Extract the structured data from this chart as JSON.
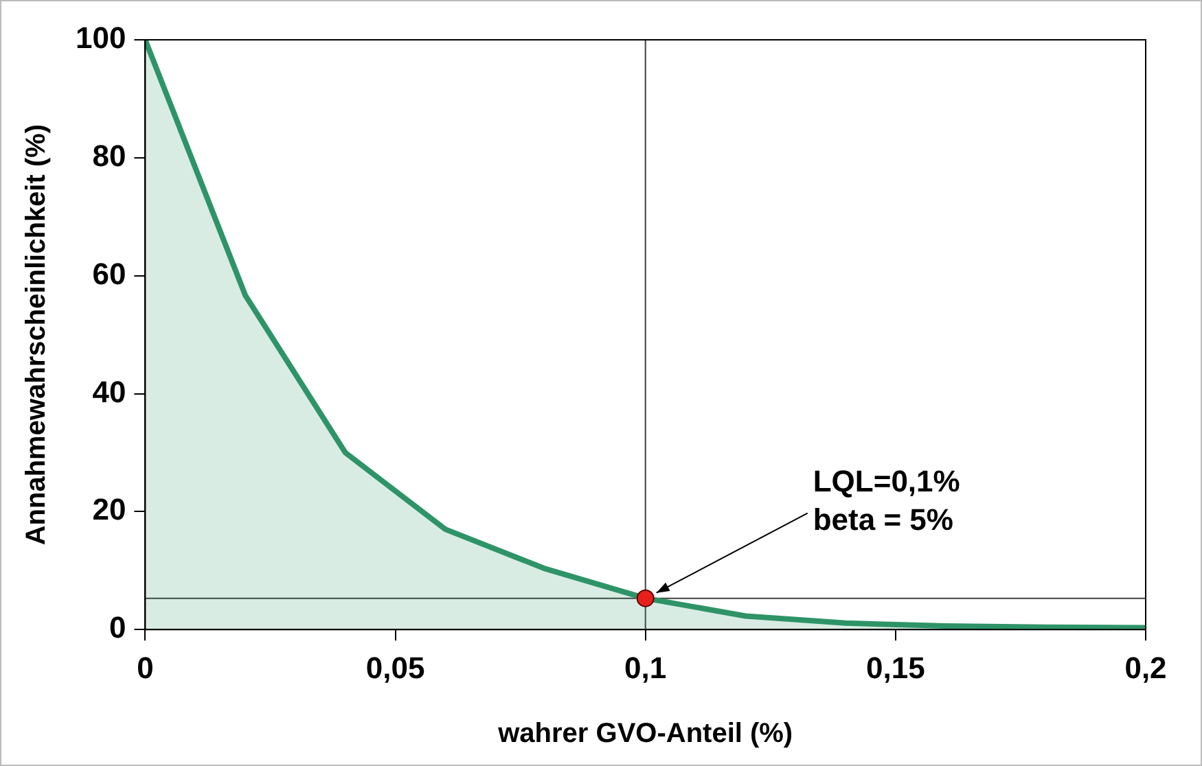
{
  "chart_data": {
    "type": "area",
    "xlabel": "wahrer GVO-Anteil (%)",
    "ylabel": "Annahmewahrscheinlichkeit (%)",
    "series": [
      {
        "color": "#2e9468",
        "x": [
          0,
          0.02,
          0.04,
          0.06,
          0.08,
          0.1,
          0.12,
          0.14,
          0.16,
          0.18,
          0.2
        ],
        "values": [
          100,
          56.7,
          30,
          17,
          10.3,
          5.3,
          2.3,
          1.1,
          0.6,
          0.4,
          0.3
        ]
      },
      {
        "type": "scatter",
        "color": "#e8201c",
        "x": [
          0.1
        ],
        "values": [
          5.3
        ]
      }
    ],
    "xlim": [
      0,
      0.2
    ],
    "xticks": [
      0,
      {
        "value": 0.05,
        "label": "0,05"
      },
      {
        "value": 0.1,
        "label": "0,1"
      },
      {
        "value": 0.15,
        "label": "0,15"
      },
      {
        "value": 0.2,
        "label": "0,2"
      }
    ],
    "ylim": [
      0,
      100
    ],
    "yticks": [
      0,
      20,
      40,
      60,
      80,
      100
    ],
    "ref_lines": [
      {
        "axis": "x",
        "value": 0.1,
        "color": "#404040"
      },
      {
        "axis": "y",
        "value": 5.3,
        "color": "#404040"
      }
    ],
    "annotations": [
      {
        "text": "LQL=0,1%\nbeta = 5%",
        "x": 0.1,
        "y": 5.3
      }
    ],
    "grid": false,
    "legend": false
  }
}
